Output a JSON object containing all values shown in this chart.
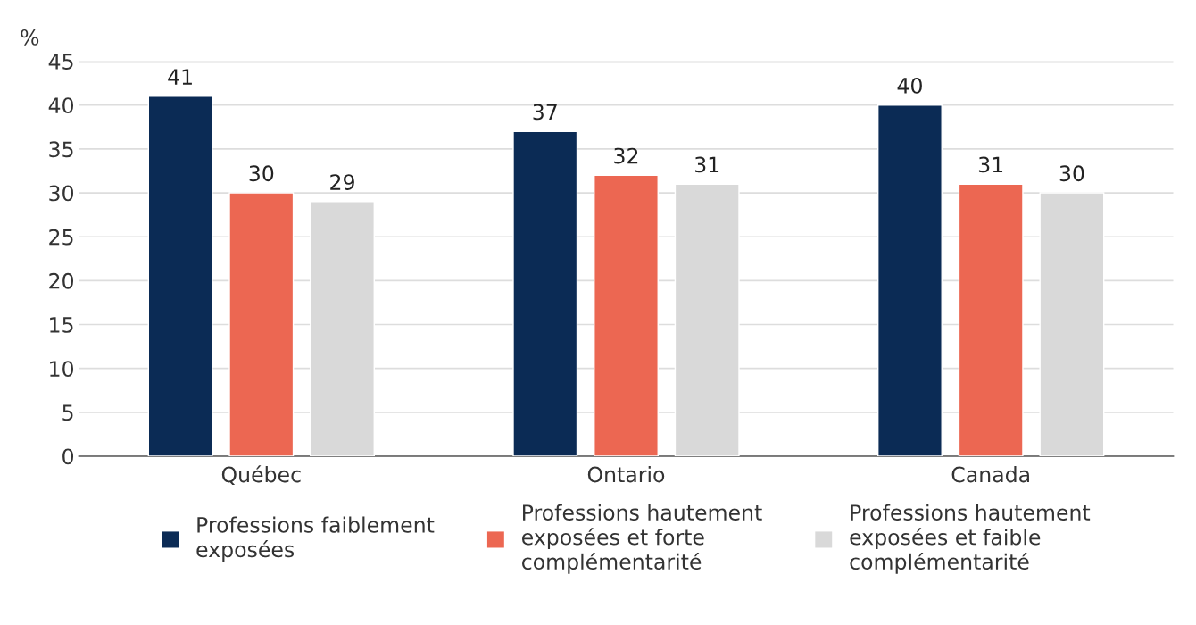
{
  "chart_data": {
    "type": "bar",
    "ylabel": "%",
    "categories": [
      "Québec",
      "Ontario",
      "Canada"
    ],
    "series": [
      {
        "name": "Professions faiblement\nexposées",
        "color": "#0b2b55",
        "values": [
          41,
          37,
          40
        ]
      },
      {
        "name": "Professions hautement\nexposées et forte\ncomplémentarité",
        "color": "#ec6752",
        "values": [
          30,
          32,
          31
        ]
      },
      {
        "name": "Professions hautement\nexposées et faible\ncomplémentarité",
        "color": "#d9d9d9",
        "values": [
          29,
          31,
          30
        ]
      }
    ],
    "ylim": [
      0,
      45
    ],
    "yticks": [
      0,
      5,
      10,
      15,
      20,
      25,
      30,
      35,
      40,
      45
    ],
    "grid": "y",
    "legend": "bottom",
    "data_labels": true
  }
}
